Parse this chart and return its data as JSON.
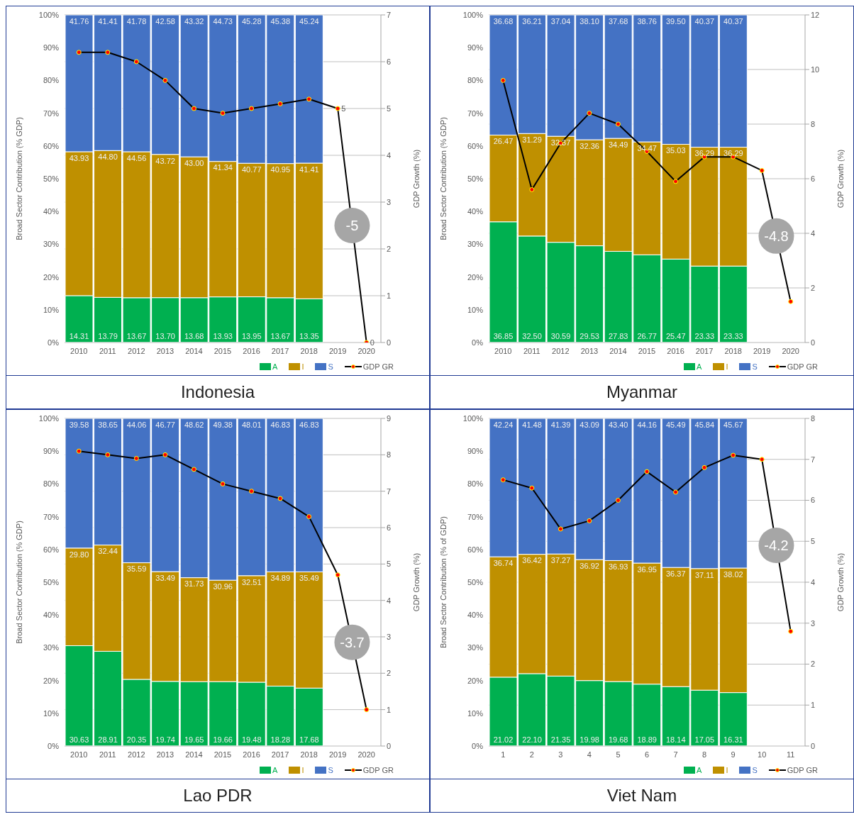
{
  "chart_data": [
    {
      "type": "bar",
      "title": "Indonesia",
      "ylabel": "Broad Sector Contribution (% GDP)",
      "y2label": "GDP Growth (%)",
      "stacked": true,
      "marker": "circle",
      "grid": "y",
      "legend": "bottom right",
      "categories": [
        "2010",
        "2011",
        "2012",
        "2013",
        "2014",
        "2015",
        "2016",
        "2017",
        "2018",
        "2019",
        "2020"
      ],
      "ylim": [
        0,
        100
      ],
      "yticks": [
        {
          "value": 0,
          "label": "0%"
        },
        {
          "value": 10,
          "label": "10%"
        },
        {
          "value": 20,
          "label": "20%"
        },
        {
          "value": 30,
          "label": "30%"
        },
        {
          "value": 40,
          "label": "40%"
        },
        {
          "value": 50,
          "label": "50%"
        },
        {
          "value": 60,
          "label": "60%"
        },
        {
          "value": 70,
          "label": "70%"
        },
        {
          "value": 80,
          "label": "80%"
        },
        {
          "value": 90,
          "label": "90%"
        },
        {
          "value": 100,
          "label": "100%"
        }
      ],
      "y2lim": [
        0,
        7
      ],
      "y2ticks": [
        0,
        1,
        2,
        3,
        4,
        5,
        6,
        7
      ],
      "annotations": [
        "-5"
      ],
      "series": [
        {
          "name": "A",
          "color": "#00b050",
          "values": [
            14.31,
            13.79,
            13.67,
            13.7,
            13.68,
            13.93,
            13.95,
            13.67,
            13.35,
            null,
            null
          ],
          "value_labels": [
            "14.31",
            "13.79",
            "13.67",
            "13.70",
            "13.68",
            "13.93",
            "13.95",
            "13.67",
            "13.35",
            null,
            null
          ]
        },
        {
          "name": "I",
          "color": "#bf9000",
          "values": [
            43.93,
            44.8,
            44.56,
            43.72,
            43.0,
            41.34,
            40.77,
            40.95,
            41.41,
            null,
            null
          ],
          "value_labels": [
            "43.93",
            "44.80",
            "44.56",
            "43.72",
            "43.00",
            "41.34",
            "40.77",
            "40.95",
            "41.41",
            null,
            null
          ]
        },
        {
          "name": "S",
          "color": "#4472c4",
          "values": [
            41.76,
            41.41,
            41.78,
            42.58,
            43.32,
            44.73,
            45.28,
            45.38,
            45.24,
            null,
            null
          ],
          "value_labels": [
            "41.76",
            "41.41",
            "41.78",
            "42.58",
            "43.32",
            "44.73",
            "45.28",
            "45.38",
            "45.24",
            null,
            null
          ]
        },
        {
          "name": "GDP GR",
          "type": "line",
          "axis": "y2",
          "color": "#000000",
          "values": [
            6.2,
            6.2,
            6.0,
            5.6,
            5.0,
            4.9,
            5.0,
            5.1,
            5.2,
            5,
            0
          ],
          "value_labels": [
            null,
            null,
            null,
            null,
            null,
            null,
            null,
            null,
            null,
            "5",
            "0"
          ]
        }
      ]
    },
    {
      "type": "bar",
      "title": "Myanmar",
      "ylabel": "Broad Sector Contribution (% GDP)",
      "y2label": "GDP Growth (%)",
      "stacked": true,
      "marker": "circle",
      "grid": "y",
      "legend": "bottom right",
      "categories": [
        "2010",
        "2011",
        "2012",
        "2013",
        "2014",
        "2015",
        "2016",
        "2017",
        "2018",
        "2019",
        "2020"
      ],
      "ylim": [
        0,
        100
      ],
      "yticks": [
        {
          "value": 0,
          "label": "0%"
        },
        {
          "value": 10,
          "label": "10%"
        },
        {
          "value": 20,
          "label": "20%"
        },
        {
          "value": 30,
          "label": "30%"
        },
        {
          "value": 40,
          "label": "40%"
        },
        {
          "value": 50,
          "label": "50%"
        },
        {
          "value": 60,
          "label": "60%"
        },
        {
          "value": 70,
          "label": "70%"
        },
        {
          "value": 80,
          "label": "80%"
        },
        {
          "value": 90,
          "label": "90%"
        },
        {
          "value": 100,
          "label": "100%"
        }
      ],
      "y2lim": [
        0,
        12
      ],
      "y2ticks": [
        0,
        2,
        4,
        6,
        8,
        10,
        12
      ],
      "annotations": [
        "-4.8"
      ],
      "series": [
        {
          "name": "A",
          "color": "#00b050",
          "values": [
            36.85,
            32.5,
            30.59,
            29.53,
            27.83,
            26.77,
            25.47,
            23.33,
            23.33,
            null,
            null
          ],
          "value_labels": [
            "36.85",
            "32.50",
            "30.59",
            "29.53",
            "27.83",
            "26.77",
            "25.47",
            "23.33",
            "23.33",
            null,
            null
          ]
        },
        {
          "name": "I",
          "color": "#bf9000",
          "values": [
            26.47,
            31.29,
            32.37,
            32.36,
            34.49,
            34.47,
            35.03,
            36.29,
            36.29,
            null,
            null
          ],
          "value_labels": [
            "26.47",
            "31.29",
            "32.37",
            "32.36",
            "34.49",
            "34.47",
            "35.03",
            "36.29",
            "36.29",
            null,
            null
          ]
        },
        {
          "name": "S",
          "color": "#4472c4",
          "values": [
            36.68,
            36.21,
            37.04,
            38.1,
            37.68,
            38.76,
            39.5,
            40.37,
            40.37,
            null,
            null
          ],
          "value_labels": [
            "36.68",
            "36.21",
            "37.04",
            "38.10",
            "37.68",
            "38.76",
            "39.50",
            "40.37",
            "40.37",
            null,
            null
          ]
        },
        {
          "name": "GDP GR",
          "type": "line",
          "axis": "y2",
          "color": "#000000",
          "values": [
            9.6,
            5.6,
            7.3,
            8.4,
            8.0,
            7.0,
            5.9,
            6.8,
            6.8,
            6.3,
            1.5
          ]
        }
      ]
    },
    {
      "type": "bar",
      "title": "Lao PDR",
      "ylabel": "Broad Sector Contribution (% GDP)",
      "y2label": "GDP Growth (%)",
      "stacked": true,
      "marker": "circle",
      "grid": "y",
      "legend": "bottom right",
      "categories": [
        "2010",
        "2011",
        "2012",
        "2013",
        "2014",
        "2015",
        "2016",
        "2017",
        "2018",
        "2019",
        "2020"
      ],
      "ylim": [
        0,
        100
      ],
      "yticks": [
        {
          "value": 0,
          "label": "0%"
        },
        {
          "value": 10,
          "label": "10%"
        },
        {
          "value": 20,
          "label": "20%"
        },
        {
          "value": 30,
          "label": "30%"
        },
        {
          "value": 40,
          "label": "40%"
        },
        {
          "value": 50,
          "label": "50%"
        },
        {
          "value": 60,
          "label": "60%"
        },
        {
          "value": 70,
          "label": "70%"
        },
        {
          "value": 80,
          "label": "80%"
        },
        {
          "value": 90,
          "label": "90%"
        },
        {
          "value": 100,
          "label": "100%"
        }
      ],
      "y2lim": [
        0,
        9
      ],
      "y2ticks": [
        0,
        1,
        2,
        3,
        4,
        5,
        6,
        7,
        8,
        9
      ],
      "annotations": [
        "-3.7"
      ],
      "series": [
        {
          "name": "A",
          "color": "#00b050",
          "values": [
            30.63,
            28.91,
            20.35,
            19.74,
            19.65,
            19.66,
            19.48,
            18.28,
            17.68,
            null,
            null
          ],
          "value_labels": [
            "30.63",
            "28.91",
            "20.35",
            "19.74",
            "19.65",
            "19.66",
            "19.48",
            "18.28",
            "17.68",
            null,
            null
          ]
        },
        {
          "name": "I",
          "color": "#bf9000",
          "values": [
            29.8,
            32.44,
            35.59,
            33.49,
            31.73,
            30.96,
            32.51,
            34.89,
            35.49,
            null,
            null
          ],
          "value_labels": [
            "29.80",
            "32.44",
            "35.59",
            "33.49",
            "31.73",
            "30.96",
            "32.51",
            "34.89",
            "35.49",
            null,
            null
          ]
        },
        {
          "name": "S",
          "color": "#4472c4",
          "values": [
            39.58,
            38.65,
            44.06,
            46.77,
            48.62,
            49.38,
            48.01,
            46.83,
            46.83,
            null,
            null
          ],
          "value_labels": [
            "39.58",
            "38.65",
            "44.06",
            "46.77",
            "48.62",
            "49.38",
            "48.01",
            "46.83",
            "46.83",
            null,
            null
          ]
        },
        {
          "name": "GDP GR",
          "type": "line",
          "axis": "y2",
          "color": "#000000",
          "values": [
            8.1,
            8.0,
            7.9,
            8.0,
            7.6,
            7.2,
            7.0,
            6.8,
            6.3,
            4.7,
            1.0
          ]
        }
      ]
    },
    {
      "type": "bar",
      "title": "Viet Nam",
      "ylabel": "Broad Sector Contribution (% of GDP)",
      "y2label": "GDP Growth (%)",
      "stacked": true,
      "marker": "circle",
      "grid": "y",
      "legend": "bottom right",
      "categories": [
        "1",
        "2",
        "3",
        "4",
        "5",
        "6",
        "7",
        "8",
        "9",
        "10",
        "11"
      ],
      "ylim": [
        0,
        100
      ],
      "yticks": [
        {
          "value": 0,
          "label": "0%"
        },
        {
          "value": 10,
          "label": "10%"
        },
        {
          "value": 20,
          "label": "20%"
        },
        {
          "value": 30,
          "label": "30%"
        },
        {
          "value": 40,
          "label": "40%"
        },
        {
          "value": 50,
          "label": "50%"
        },
        {
          "value": 60,
          "label": "60%"
        },
        {
          "value": 70,
          "label": "70%"
        },
        {
          "value": 80,
          "label": "80%"
        },
        {
          "value": 90,
          "label": "90%"
        },
        {
          "value": 100,
          "label": "100%"
        }
      ],
      "y2lim": [
        0,
        8
      ],
      "y2ticks": [
        0,
        1,
        2,
        3,
        4,
        5,
        6,
        7,
        8
      ],
      "annotations": [
        "-4.2"
      ],
      "series": [
        {
          "name": "A",
          "color": "#00b050",
          "values": [
            21.02,
            22.1,
            21.35,
            19.98,
            19.68,
            18.89,
            18.14,
            17.05,
            16.31,
            null,
            null
          ],
          "value_labels": [
            "21.02",
            "22.10",
            "21.35",
            "19.98",
            "19.68",
            "18.89",
            "18.14",
            "17.05",
            "16.31",
            null,
            null
          ]
        },
        {
          "name": "I",
          "color": "#bf9000",
          "values": [
            36.74,
            36.42,
            37.27,
            36.92,
            36.93,
            36.95,
            36.37,
            37.11,
            38.02,
            null,
            null
          ],
          "value_labels": [
            "36.74",
            "36.42",
            "37.27",
            "36.92",
            "36.93",
            "36.95",
            "36.37",
            "37.11",
            "38.02",
            null,
            null
          ]
        },
        {
          "name": "S",
          "color": "#4472c4",
          "values": [
            42.24,
            41.48,
            41.39,
            43.09,
            43.4,
            44.16,
            45.49,
            45.84,
            45.67,
            null,
            null
          ],
          "value_labels": [
            "42.24",
            "41.48",
            "41.39",
            "43.09",
            "43.40",
            "44.16",
            "45.49",
            "45.84",
            "45.67",
            null,
            null
          ]
        },
        {
          "name": "GDP GR",
          "type": "line",
          "axis": "y2",
          "color": "#000000",
          "values": [
            6.5,
            6.3,
            5.3,
            5.5,
            6.0,
            6.7,
            6.2,
            6.8,
            7.1,
            7.0,
            2.8
          ]
        }
      ]
    }
  ]
}
